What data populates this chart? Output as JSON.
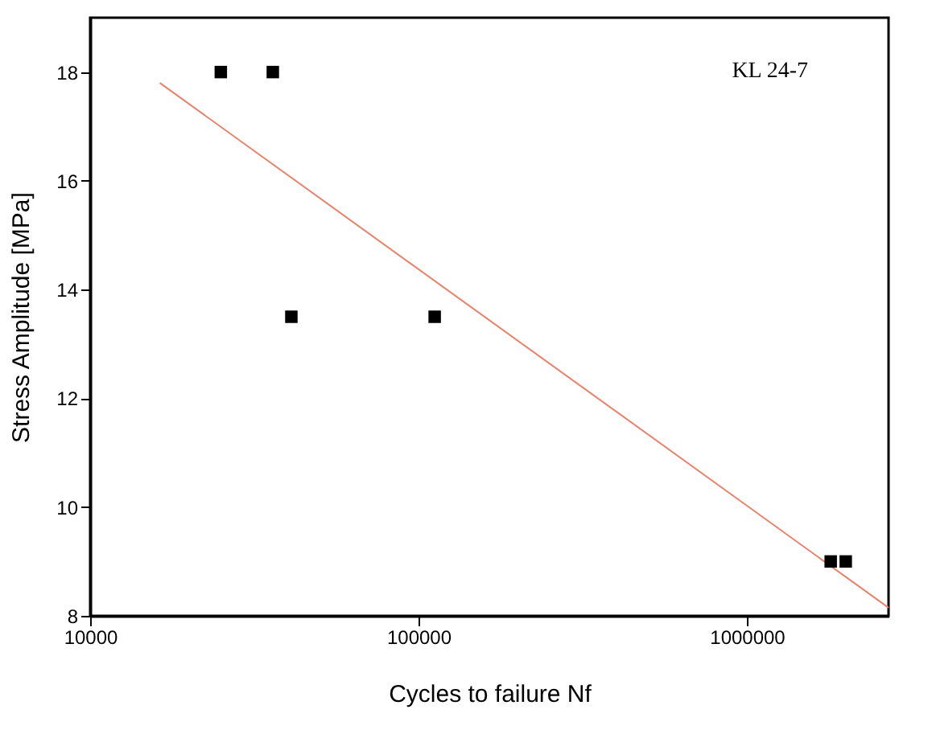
{
  "chart_data": {
    "type": "scatter",
    "xlabel": "Cycles to failure Nf",
    "ylabel": "Stress Amplitude [MPa]",
    "log": "x",
    "xlim": [
      10000,
      2700000
    ],
    "xticks": [
      10000,
      100000,
      1000000
    ],
    "ylim": [
      8,
      19
    ],
    "yticks": [
      8,
      10,
      12,
      14,
      16,
      18
    ],
    "grid": false,
    "marker": "square",
    "series": [
      {
        "color": "#000000",
        "x": [
          25000,
          36000,
          41000,
          112000,
          1800000,
          2000000
        ],
        "values": [
          18,
          18,
          13.5,
          13.5,
          9,
          9
        ]
      },
      {
        "type": "line",
        "color": "#e8826a",
        "marker": "none",
        "line_style": "solid",
        "x": [
          16300,
          2700000
        ],
        "values": [
          17.8,
          8.15
        ]
      }
    ],
    "annotations": [
      "KL 24-7"
    ]
  }
}
